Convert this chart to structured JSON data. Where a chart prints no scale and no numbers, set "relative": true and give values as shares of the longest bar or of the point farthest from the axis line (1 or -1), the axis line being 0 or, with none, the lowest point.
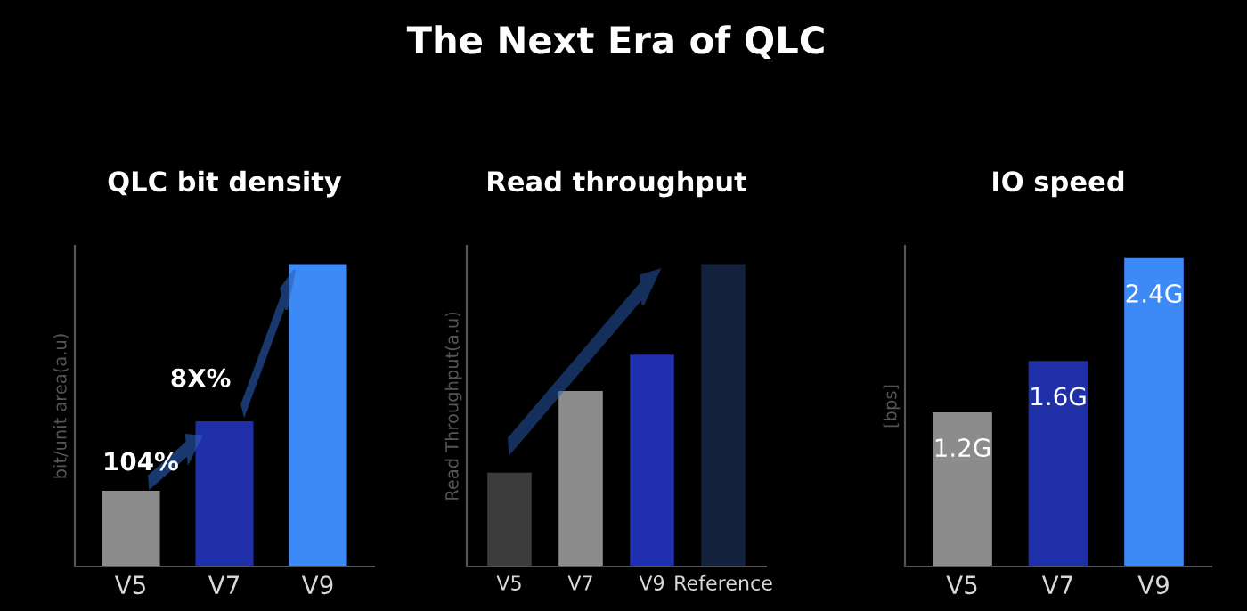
{
  "chart_data": [
    {
      "type": "bar",
      "subtitle": "QLC bit density",
      "ylabel": "bit/unit area(a.u)",
      "categories": [
        "V5",
        "V7",
        "V9"
      ],
      "relative": true,
      "tick_labels": "x",
      "series": [
        {
          "values": [
            0.25,
            0.48,
            1
          ],
          "colors": [
            "#8c8c8c",
            "#1f2fa8",
            "#3d8af7"
          ]
        }
      ],
      "annotations": [
        "104%",
        "8X%"
      ]
    },
    {
      "type": "bar",
      "title": "The Next Era of QLC",
      "subtitle": "Read throughput",
      "ylabel": "Read Throughput(a.u)",
      "categories": [
        "V5",
        "V7",
        "V9",
        "Reference"
      ],
      "relative": true,
      "tick_labels": "x",
      "series": [
        {
          "values": [
            0.31,
            0.58,
            0.7,
            1
          ],
          "colors": [
            "#3c3c3c",
            "#8c8c8c",
            "#1f2fb0",
            "#14213d"
          ]
        }
      ]
    },
    {
      "type": "bar",
      "subtitle": "IO speed",
      "ylabel": "[bps]",
      "categories": [
        "V5",
        "V7",
        "V9"
      ],
      "tick_labels": "x",
      "series": [
        {
          "values": [
            1.2,
            1.6,
            2.4
          ],
          "colors": [
            "#8c8c8c",
            "#1f2fa8",
            "#3d8af7"
          ],
          "value_labels": [
            "1.2G",
            "1.6G",
            "2.4G"
          ]
        }
      ]
    }
  ]
}
